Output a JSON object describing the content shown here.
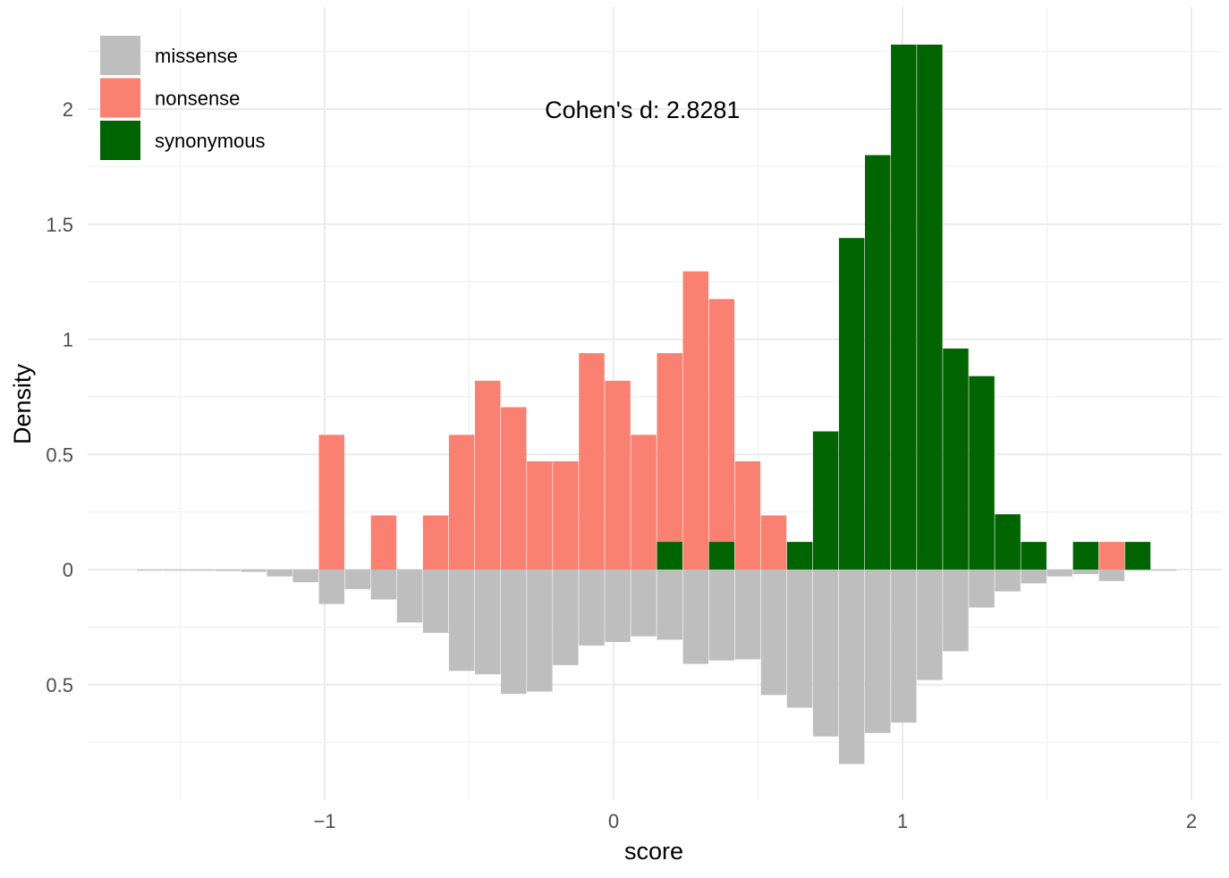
{
  "chart_data": {
    "type": "bar",
    "subtype": "mirrored-histogram",
    "xlabel": "score",
    "ylabel": "Density",
    "xlim": [
      -1.75,
      2.12
    ],
    "ylim": [
      -0.85,
      2.28
    ],
    "x_ticks": [
      {
        "value": -1,
        "label": "−1"
      },
      {
        "value": 0,
        "label": "0"
      },
      {
        "value": 1,
        "label": "1"
      },
      {
        "value": 2,
        "label": "2"
      }
    ],
    "y_ticks": [
      {
        "value": -0.5,
        "label": "0.5"
      },
      {
        "value": 0,
        "label": "0"
      },
      {
        "value": 0.5,
        "label": "0.5"
      },
      {
        "value": 1,
        "label": "1"
      },
      {
        "value": 1.5,
        "label": "1.5"
      },
      {
        "value": 2,
        "label": "2"
      }
    ],
    "grid": true,
    "legend_position": "top-left",
    "annotation": {
      "text": "Cohen's d:  2.8281",
      "x": 0.1,
      "y": 2.0
    },
    "bin_width": 0.09,
    "series": [
      {
        "name": "missense",
        "color": "#bebebe",
        "direction": "down",
        "bins": [
          {
            "x0": -1.65,
            "value": 0.004
          },
          {
            "x0": -1.56,
            "value": 0.004
          },
          {
            "x0": -1.47,
            "value": 0.005
          },
          {
            "x0": -1.38,
            "value": 0.006
          },
          {
            "x0": -1.29,
            "value": 0.01
          },
          {
            "x0": -1.2,
            "value": 0.03
          },
          {
            "x0": -1.11,
            "value": 0.055
          },
          {
            "x0": -1.02,
            "value": 0.15
          },
          {
            "x0": -0.93,
            "value": 0.085
          },
          {
            "x0": -0.84,
            "value": 0.13
          },
          {
            "x0": -0.75,
            "value": 0.23
          },
          {
            "x0": -0.66,
            "value": 0.275
          },
          {
            "x0": -0.57,
            "value": 0.44
          },
          {
            "x0": -0.48,
            "value": 0.455
          },
          {
            "x0": -0.39,
            "value": 0.54
          },
          {
            "x0": -0.3,
            "value": 0.53
          },
          {
            "x0": -0.21,
            "value": 0.415
          },
          {
            "x0": -0.12,
            "value": 0.33
          },
          {
            "x0": -0.03,
            "value": 0.315
          },
          {
            "x0": 0.06,
            "value": 0.29
          },
          {
            "x0": 0.15,
            "value": 0.305
          },
          {
            "x0": 0.24,
            "value": 0.41
          },
          {
            "x0": 0.33,
            "value": 0.395
          },
          {
            "x0": 0.42,
            "value": 0.39
          },
          {
            "x0": 0.51,
            "value": 0.545
          },
          {
            "x0": 0.6,
            "value": 0.6
          },
          {
            "x0": 0.69,
            "value": 0.725
          },
          {
            "x0": 0.78,
            "value": 0.845
          },
          {
            "x0": 0.87,
            "value": 0.71
          },
          {
            "x0": 0.96,
            "value": 0.665
          },
          {
            "x0": 1.05,
            "value": 0.48
          },
          {
            "x0": 1.14,
            "value": 0.355
          },
          {
            "x0": 1.23,
            "value": 0.165
          },
          {
            "x0": 1.32,
            "value": 0.095
          },
          {
            "x0": 1.41,
            "value": 0.06
          },
          {
            "x0": 1.5,
            "value": 0.03
          },
          {
            "x0": 1.59,
            "value": 0.02
          },
          {
            "x0": 1.68,
            "value": 0.05
          },
          {
            "x0": 1.77,
            "value": 0.005
          },
          {
            "x0": 1.86,
            "value": 0.005
          }
        ]
      },
      {
        "name": "nonsense",
        "color": "#fa8072",
        "direction": "up",
        "bins": [
          {
            "x0": -1.02,
            "value": 0.585
          },
          {
            "x0": -0.84,
            "value": 0.235
          },
          {
            "x0": -0.66,
            "value": 0.235
          },
          {
            "x0": -0.57,
            "value": 0.585
          },
          {
            "x0": -0.48,
            "value": 0.82
          },
          {
            "x0": -0.39,
            "value": 0.705
          },
          {
            "x0": -0.3,
            "value": 0.47
          },
          {
            "x0": -0.21,
            "value": 0.47
          },
          {
            "x0": -0.12,
            "value": 0.94
          },
          {
            "x0": -0.03,
            "value": 0.82
          },
          {
            "x0": 0.06,
            "value": 0.585
          },
          {
            "x0": 0.15,
            "value": 0.94
          },
          {
            "x0": 0.24,
            "value": 1.295
          },
          {
            "x0": 0.33,
            "value": 1.175
          },
          {
            "x0": 0.42,
            "value": 0.47
          },
          {
            "x0": 0.51,
            "value": 0.235
          },
          {
            "x0": 1.68,
            "value": 0.12
          }
        ]
      },
      {
        "name": "synonymous",
        "color": "#006400",
        "direction": "up",
        "bins": [
          {
            "x0": 0.15,
            "value": 0.12
          },
          {
            "x0": 0.33,
            "value": 0.12
          },
          {
            "x0": 0.6,
            "value": 0.12
          },
          {
            "x0": 0.69,
            "value": 0.6
          },
          {
            "x0": 0.78,
            "value": 1.44
          },
          {
            "x0": 0.87,
            "value": 1.8
          },
          {
            "x0": 0.96,
            "value": 2.28
          },
          {
            "x0": 1.05,
            "value": 2.28
          },
          {
            "x0": 1.14,
            "value": 0.96
          },
          {
            "x0": 1.23,
            "value": 0.84
          },
          {
            "x0": 1.32,
            "value": 0.24
          },
          {
            "x0": 1.41,
            "value": 0.12
          },
          {
            "x0": 1.59,
            "value": 0.12
          },
          {
            "x0": 1.77,
            "value": 0.12
          }
        ]
      }
    ]
  }
}
